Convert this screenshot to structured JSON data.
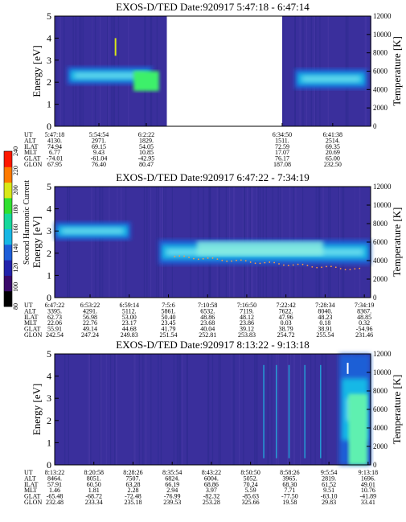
{
  "colorbar": {
    "label": "Second Harmonic Current",
    "ticks": [
      "80",
      "100",
      "120",
      "140",
      "160",
      "180",
      "200",
      "220",
      "240"
    ],
    "colors": [
      "#000000",
      "#3a0a6a",
      "#2222aa",
      "#1e5ed8",
      "#18b7e4",
      "#16d89c",
      "#30e030",
      "#d8e818",
      "#ff7a00",
      "#ff1800"
    ]
  },
  "chart_data": [
    {
      "type": "heatmap",
      "title": "EXOS-D/TED   Date:920917  5:47:18 - 6:47:14",
      "ylabel": "Energy [eV]",
      "y2label": "Temperature [K]",
      "ylim": [
        0,
        5
      ],
      "y2lim": [
        0,
        12000
      ],
      "yticks": [
        "0",
        "1",
        "2",
        "3",
        "4",
        "5"
      ],
      "y2ticks": [
        "0",
        "2000",
        "4000",
        "6000",
        "8000",
        "10000",
        "12000"
      ],
      "gaps": [
        [
          0.355,
          0.72
        ]
      ],
      "bands": [
        [
          0.04,
          0.31,
          1.9,
          2.7
        ],
        [
          0.76,
          0.99,
          1.7,
          2.6
        ]
      ],
      "param_rows": [
        "UT",
        "ALT",
        "ILAT",
        "MLT",
        "GLAT",
        "GLON"
      ],
      "columns": [
        {
          "pos": 0.0,
          "vals": [
            "5:47:18",
            "4130.",
            "74.94",
            "6.77",
            "-74.01",
            "67.95"
          ]
        },
        {
          "pos": 0.14,
          "vals": [
            "5:54:54",
            "2971.",
            "69.15",
            "9.43",
            "-61.04",
            "76.40"
          ]
        },
        {
          "pos": 0.29,
          "vals": [
            "6:2:22",
            "1829.",
            "54.05",
            "10.85",
            "-42.95",
            "80.47"
          ]
        },
        {
          "pos": 0.72,
          "vals": [
            "6:34:50",
            "1511.",
            "72.59",
            "17.07",
            "76.17",
            "187.08"
          ]
        },
        {
          "pos": 0.88,
          "vals": [
            "6:41:38",
            "2514.",
            "69.35",
            "20.69",
            "65.00",
            "232.50"
          ]
        }
      ]
    },
    {
      "type": "heatmap",
      "title": "EXOS-D/TED   Date:920917  6:47:22 - 7:34:19",
      "ylabel": "Energy [eV]",
      "y2label": "Temperature [K]",
      "ylim": [
        0,
        5
      ],
      "y2lim": [
        0,
        12000
      ],
      "yticks": [
        "0",
        "1",
        "2",
        "3",
        "4",
        "5"
      ],
      "y2ticks": [
        "0",
        "2000",
        "4000",
        "6000",
        "8000",
        "10000",
        "12000"
      ],
      "gaps": [],
      "bands": [
        [
          0.0,
          0.24,
          2.6,
          3.4
        ],
        [
          0.33,
          1.0,
          1.5,
          2.6
        ]
      ],
      "param_rows": [
        "UT",
        "ALT",
        "ILAT",
        "MLT",
        "GLAT",
        "GLON"
      ],
      "columns": [
        {
          "pos": 0.0,
          "vals": [
            "6:47:22",
            "3395.",
            "62.73",
            "22.06",
            "55.91",
            "242.54"
          ]
        },
        {
          "pos": 0.112,
          "vals": [
            "6:53:22",
            "4291.",
            "56.98",
            "22.76",
            "49.14",
            "247.24"
          ]
        },
        {
          "pos": 0.236,
          "vals": [
            "6:59:14",
            "5112.",
            "53.00",
            "23.17",
            "44.68",
            "249.83"
          ]
        },
        {
          "pos": 0.36,
          "vals": [
            "7:5:6",
            "5861.",
            "50.40",
            "23.45",
            "41.79",
            "251.54"
          ]
        },
        {
          "pos": 0.484,
          "vals": [
            "7:10:58",
            "6532.",
            "48.86",
            "23.68",
            "40.04",
            "252.81"
          ]
        },
        {
          "pos": 0.608,
          "vals": [
            "7:16:50",
            "7119.",
            "48.12",
            "23.86",
            "39.12",
            "253.83"
          ]
        },
        {
          "pos": 0.732,
          "vals": [
            "7:22:42",
            "7622.",
            "47.96",
            "0.03",
            "38.79",
            "254.72"
          ]
        },
        {
          "pos": 0.856,
          "vals": [
            "7:28:34",
            "8040.",
            "48.23",
            "0.18",
            "38.91",
            "255.54"
          ]
        },
        {
          "pos": 0.98,
          "vals": [
            "7:34:19",
            "8367.",
            "48.85",
            "0.32",
            "-54.96",
            "231.46"
          ]
        }
      ]
    },
    {
      "type": "heatmap",
      "title": "EXOS-D/TED   Date:920917  8:13:22 - 9:13:18",
      "ylabel": "Energy [eV]",
      "y2label": "Temperature [K]",
      "ylim": [
        0,
        5
      ],
      "y2lim": [
        0,
        12000
      ],
      "yticks": [
        "0",
        "1",
        "2",
        "3",
        "4",
        "5"
      ],
      "y2ticks": [
        "0",
        "2000",
        "4000",
        "6000",
        "8000",
        "10000",
        "12000"
      ],
      "gaps": [],
      "bands": [
        [
          0.9,
          1.0,
          0.0,
          5.0
        ]
      ],
      "param_rows": [
        "UT",
        "ALT",
        "ILAT",
        "MLT",
        "GLAT",
        "GLON"
      ],
      "columns": [
        {
          "pos": 0.0,
          "vals": [
            "8:13:22",
            "8464.",
            "57.91",
            "1.46",
            "-65.48",
            "232.48"
          ]
        },
        {
          "pos": 0.124,
          "vals": [
            "8:20:58",
            "8051.",
            "60.50",
            "1.81",
            "-68.72",
            "233.34"
          ]
        },
        {
          "pos": 0.248,
          "vals": [
            "8:28:26",
            "7507.",
            "63.28",
            "2.28",
            "-72.48",
            "235.18"
          ]
        },
        {
          "pos": 0.372,
          "vals": [
            "8:35:54",
            "6824.",
            "66.19",
            "2.94",
            "-76.99",
            "239.53"
          ]
        },
        {
          "pos": 0.496,
          "vals": [
            "8:43:22",
            "6004.",
            "68.86",
            "3.97",
            "-82.32",
            "253.28"
          ]
        },
        {
          "pos": 0.62,
          "vals": [
            "8:50:50",
            "5052.",
            "70.24",
            "5.59",
            "-85.63",
            "325.66"
          ]
        },
        {
          "pos": 0.744,
          "vals": [
            "8:58:26",
            "3965.",
            "68.30",
            "7.71",
            "-77.50",
            "19.58"
          ]
        },
        {
          "pos": 0.868,
          "vals": [
            "9:5:54",
            "2819.",
            "61.52",
            "9.51",
            "-63.10",
            "29.83"
          ]
        },
        {
          "pos": 0.992,
          "vals": [
            "9:13:18",
            "1696.",
            "49.01",
            "10.76",
            "-41.89",
            "33.41"
          ]
        }
      ]
    }
  ]
}
